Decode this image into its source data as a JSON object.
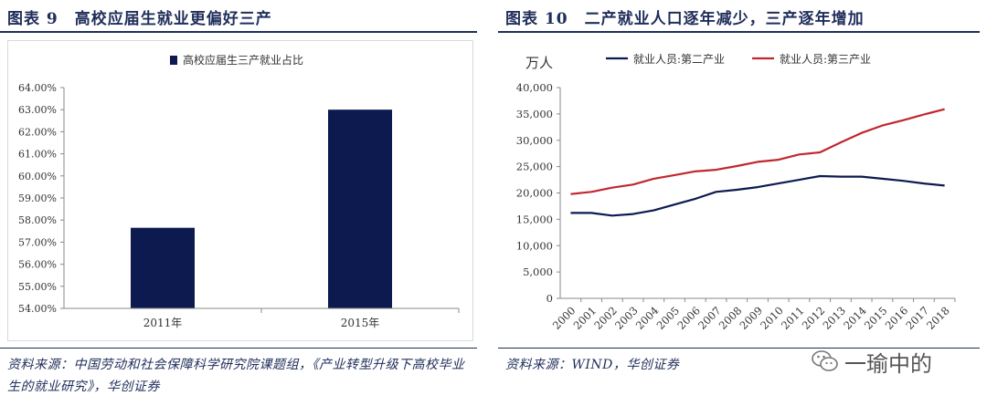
{
  "left": {
    "fig_number": "图表 9",
    "fig_title": "高校应届生就业更偏好三产",
    "source": "资料来源：中国劳动和社会保障科学研究院课题组，《产业转型升级下高校毕业生的就业研究》，华创证券"
  },
  "right": {
    "fig_number": "图表 10",
    "fig_title": "二产就业人口逐年减少，三产逐年增加",
    "source": "资料来源：WIND，华创证券"
  },
  "watermark": {
    "text": "一瑜中的",
    "icon": "wechat-icon"
  },
  "colors": {
    "navy": "#0d1a4f",
    "red": "#c0272d",
    "axis": "#888888",
    "grid": "#d9d9d9"
  },
  "chart_data": [
    {
      "type": "bar",
      "title": "",
      "legend": [
        "高校应届生三产就业占比"
      ],
      "legend_placement": "top",
      "categories": [
        "2011年",
        "2015年"
      ],
      "values": [
        57.65,
        63.0
      ],
      "ylim": [
        54.0,
        64.0
      ],
      "yticks": [
        "54.00%",
        "55.00%",
        "56.00%",
        "57.00%",
        "58.00%",
        "59.00%",
        "60.00%",
        "61.00%",
        "62.00%",
        "63.00%",
        "64.00%"
      ],
      "xlabel": "",
      "ylabel": ""
    },
    {
      "type": "line",
      "title": "",
      "ylabel": "万人",
      "legend_placement": "top",
      "x": [
        "2000",
        "2001",
        "2002",
        "2003",
        "2004",
        "2005",
        "2006",
        "2007",
        "2008",
        "2009",
        "2010",
        "2011",
        "2012",
        "2013",
        "2014",
        "2015",
        "2016",
        "2017",
        "2018"
      ],
      "ylim": [
        0,
        40000
      ],
      "yticks": [
        "0",
        "5,000",
        "10,000",
        "15,000",
        "20,000",
        "25,000",
        "30,000",
        "35,000",
        "40,000"
      ],
      "series": [
        {
          "name": "就业人员:第二产业",
          "color": "#0d1a4f",
          "values": [
            16200,
            16200,
            15700,
            16000,
            16700,
            17800,
            18900,
            20200,
            20600,
            21100,
            21800,
            22500,
            23200,
            23100,
            23100,
            22700,
            22300,
            21800,
            21400
          ]
        },
        {
          "name": "就业人员:第三产业",
          "color": "#c0272d",
          "values": [
            19800,
            20200,
            21000,
            21600,
            22700,
            23400,
            24100,
            24400,
            25100,
            25900,
            26300,
            27300,
            27700,
            29600,
            31400,
            32800,
            33800,
            34900,
            35900
          ]
        }
      ]
    }
  ]
}
